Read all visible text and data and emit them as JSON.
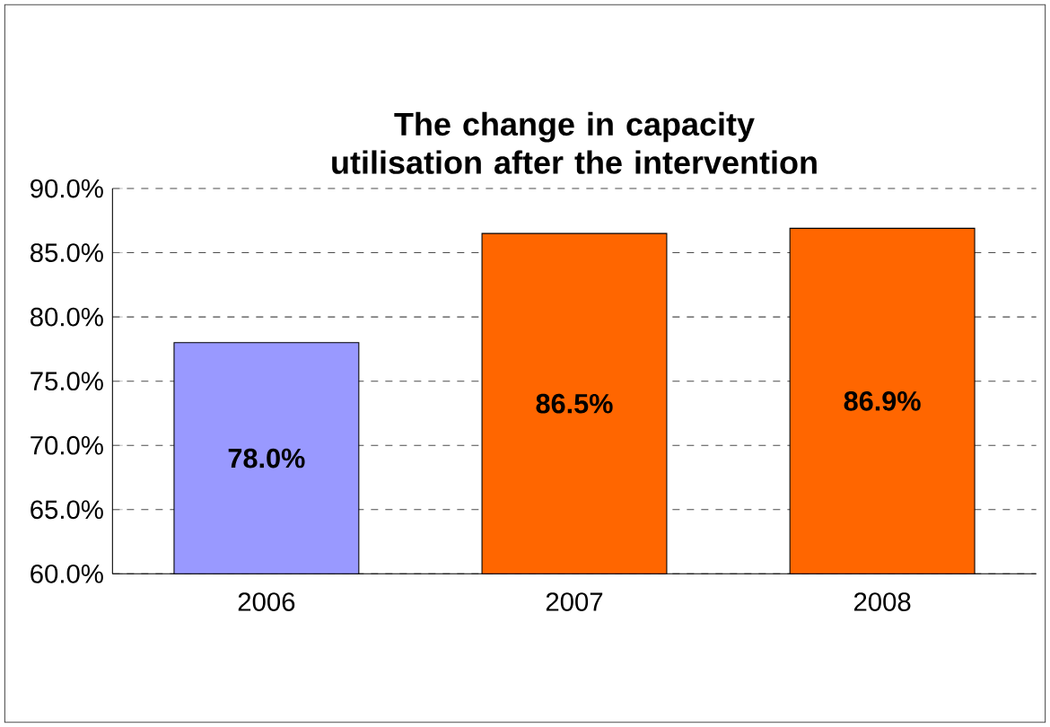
{
  "chart_data": {
    "type": "bar",
    "title": "The change in capacity utilisation after the intervention",
    "categories": [
      "2006",
      "2007",
      "2008"
    ],
    "values": [
      78.0,
      86.5,
      86.9
    ],
    "colors": [
      "#9999ff",
      "#ff6600",
      "#ff6600"
    ],
    "value_labels": [
      "78.0%",
      "86.5%",
      "86.9%"
    ],
    "ylim": [
      60,
      90
    ],
    "yticks": [
      {
        "value": 60,
        "label": "60.0%"
      },
      {
        "value": 65,
        "label": "65.0%"
      },
      {
        "value": 70,
        "label": "70.0%"
      },
      {
        "value": 75,
        "label": "75.0%"
      },
      {
        "value": 80,
        "label": "80.0%"
      },
      {
        "value": 85,
        "label": "85.0%"
      },
      {
        "value": 90,
        "label": "90.0%"
      }
    ],
    "grid": "y"
  }
}
